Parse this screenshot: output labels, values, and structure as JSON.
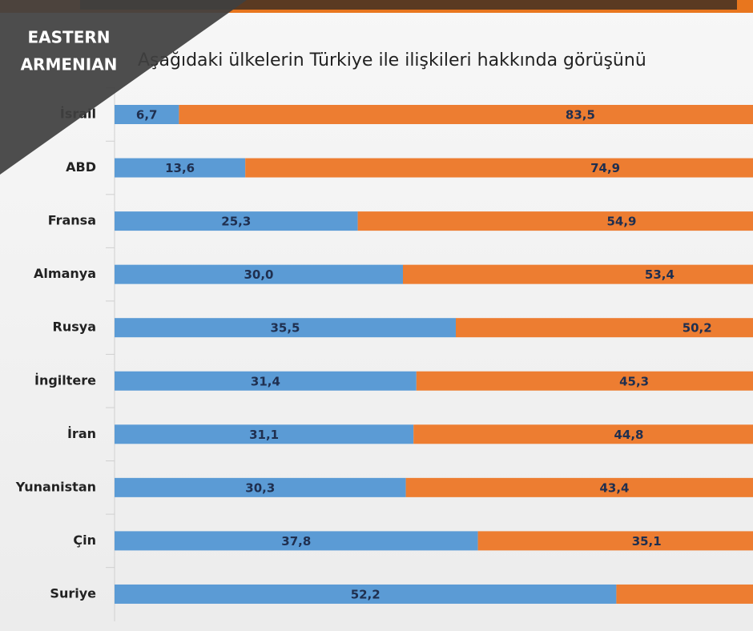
{
  "chart_data": {
    "type": "stacked-bar-horizontal",
    "title": "Aşağıdaki ülkelerin Türkiye ile ilişkileri hakkında görüşünü",
    "categories": [
      "İsrail",
      "ABD",
      "Fransa",
      "Almanya",
      "Rusya",
      "İngiltere",
      "İran",
      "Yunanistan",
      "Çin",
      "Suriye"
    ],
    "series": [
      {
        "color": "#5b9bd5",
        "values": [
          6.7,
          13.6,
          25.3,
          30.0,
          35.5,
          31.4,
          31.1,
          30.3,
          37.8,
          52.2
        ],
        "value_labels": [
          "6,7",
          "13,6",
          "25,3",
          "30,0",
          "35,5",
          "31,4",
          "31,1",
          "30,3",
          "37,8",
          "52,2"
        ]
      },
      {
        "color": "#ed7d31",
        "values": [
          83.5,
          74.9,
          54.9,
          53.4,
          50.2,
          45.3,
          44.8,
          43.4,
          35.1,
          null
        ],
        "value_labels": [
          "83,5",
          "74,9",
          "54,9",
          "53,4",
          "50,2",
          "45,3",
          "44,8",
          "43,4",
          "35,1",
          null
        ]
      }
    ]
  },
  "overlay_label": [
    "EASTERN",
    "ARMENIAN"
  ]
}
